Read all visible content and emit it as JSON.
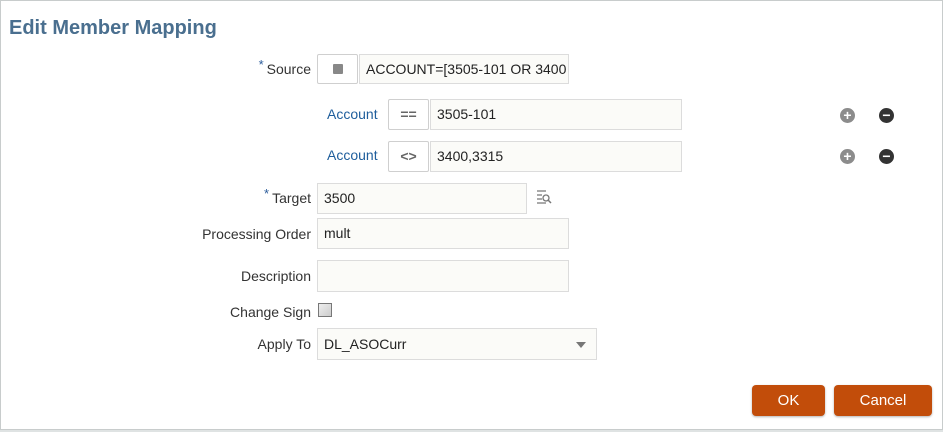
{
  "dialog": {
    "title": "Edit Member Mapping"
  },
  "form": {
    "source": {
      "label": "Source",
      "required_mark": "*",
      "value": "ACCOUNT=[3505-101 OR 3400"
    },
    "conditions": [
      {
        "label": "Account",
        "operator": "==",
        "value": "3505-101"
      },
      {
        "label": "Account",
        "operator": "<>",
        "value": "3400,3315"
      }
    ],
    "target": {
      "label": "Target",
      "required_mark": "*",
      "value": "3500"
    },
    "processing_order": {
      "label": "Processing Order",
      "value": "mult"
    },
    "description": {
      "label": "Description",
      "value": ""
    },
    "change_sign": {
      "label": "Change Sign",
      "checked": false
    },
    "apply_to": {
      "label": "Apply To",
      "value": "DL_ASOCurr"
    }
  },
  "buttons": {
    "ok": "OK",
    "cancel": "Cancel"
  },
  "colors": {
    "title": "#4a6f8f",
    "accent_button": "#c24d0a",
    "link": "#1f5e9c"
  }
}
